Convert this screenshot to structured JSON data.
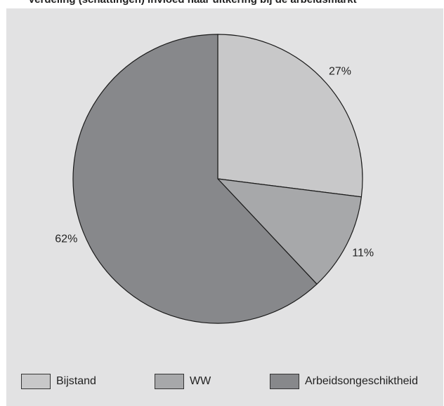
{
  "header": {
    "title": "Verdeling (schattingen) invloed naar uitkering bij de arbeidsmarkt"
  },
  "chart_data": {
    "type": "pie",
    "title": "",
    "labels": [
      "Bijstand",
      "WW",
      "Arbeidsongeschiktheid"
    ],
    "values": [
      27,
      11,
      62
    ],
    "value_labels": [
      "27%",
      "11%",
      "62%"
    ],
    "colors": [
      "#c8c8c9",
      "#a7a8aa",
      "#87888b"
    ],
    "start": "12 o'clock",
    "direction": "clockwise",
    "legend": "bottom"
  }
}
